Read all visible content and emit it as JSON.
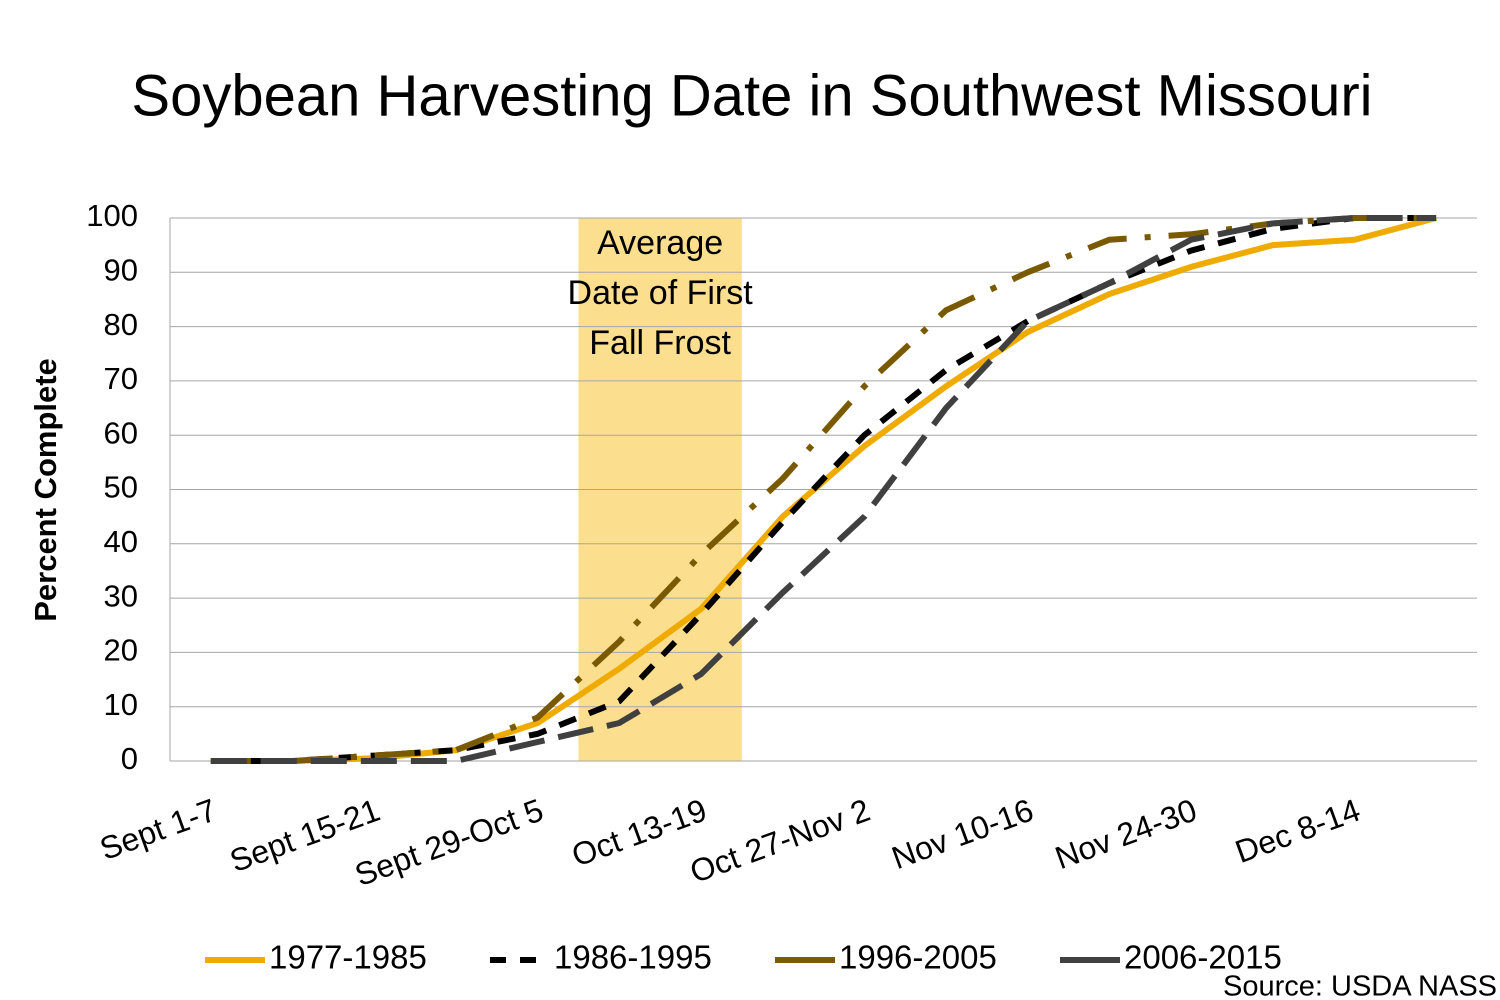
{
  "chart_data": {
    "type": "line",
    "title": "Soybean Harvesting Date in Southwest Missouri",
    "y_label": "Percent Complete",
    "source": "Source: USDA NASS",
    "annotation": [
      "Average",
      "Date of First",
      "Fall Frost"
    ],
    "categories": [
      "Sept 1-7",
      null,
      "Sept 15-21",
      null,
      "Sept 29-Oct 5",
      null,
      "Oct 13-19",
      null,
      "Oct 27-Nov 2",
      null,
      "Nov 10-16",
      null,
      "Nov 24-30",
      null,
      "Dec 8-14",
      null
    ],
    "series": [
      {
        "name": "1977-1985",
        "color": "#f0ab00",
        "dash": "solid",
        "values": [
          0,
          0,
          0.5,
          2,
          7,
          17,
          28,
          45,
          58,
          69,
          79,
          86,
          91,
          95,
          96,
          100
        ]
      },
      {
        "name": "1986-1995",
        "color": "#000000",
        "dash": "dash",
        "values": [
          0,
          0,
          1,
          2,
          5,
          11,
          27,
          44,
          60,
          72,
          81,
          88,
          94,
          98,
          100,
          100
        ]
      },
      {
        "name": "1996-2005",
        "color": "#7a5a00",
        "dash": "dashdot",
        "values": [
          0,
          0,
          1,
          2,
          8,
          22,
          38,
          52,
          69,
          83,
          90,
          96,
          97,
          99,
          100,
          100
        ]
      },
      {
        "name": "2006-2015",
        "color": "#404040",
        "dash": "longdash",
        "values": [
          0,
          0,
          0,
          0,
          3.5,
          7,
          16,
          31,
          45,
          65,
          81,
          88,
          96,
          99,
          100,
          100
        ]
      }
    ],
    "ylim": [
      0,
      100
    ],
    "yticks": [
      0,
      10,
      20,
      30,
      40,
      50,
      60,
      70,
      80,
      90,
      100
    ],
    "grid": true,
    "highlight_color": "#fbdf8f"
  }
}
